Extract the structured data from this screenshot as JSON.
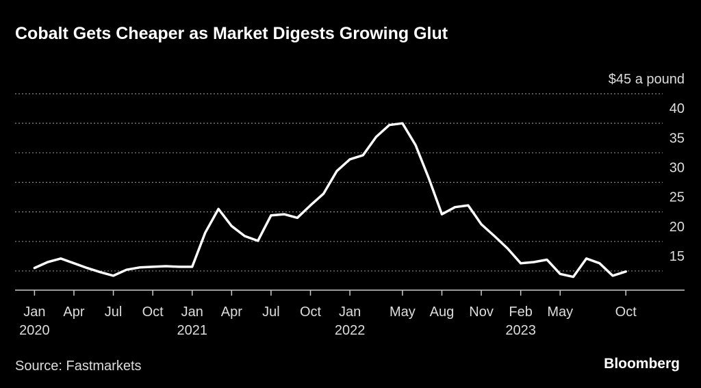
{
  "chart_data": {
    "type": "line",
    "title": "Cobalt Gets Cheaper as Market Digests Growing Glut",
    "source": "Source: Fastmarkets",
    "brand": "Bloomberg",
    "color": "#ffffff",
    "grid": true,
    "x": [
      "2020-01",
      "2020-02",
      "2020-03",
      "2020-04",
      "2020-05",
      "2020-06",
      "2020-07",
      "2020-08",
      "2020-09",
      "2020-10",
      "2020-11",
      "2020-12",
      "2021-01",
      "2021-02",
      "2021-03",
      "2021-04",
      "2021-05",
      "2021-06",
      "2021-07",
      "2021-08",
      "2021-09",
      "2021-10",
      "2021-11",
      "2021-12",
      "2022-01",
      "2022-02",
      "2022-03",
      "2022-04",
      "2022-05",
      "2022-06",
      "2022-07",
      "2022-08",
      "2022-09",
      "2022-10",
      "2022-11",
      "2022-12",
      "2023-01",
      "2023-02",
      "2023-03",
      "2023-04",
      "2023-05",
      "2023-06",
      "2023-07",
      "2023-08",
      "2023-09",
      "2023-10"
    ],
    "values": [
      15.5,
      16.5,
      17.1,
      16.3,
      15.5,
      14.8,
      14.2,
      15.2,
      15.6,
      15.7,
      15.8,
      15.7,
      15.7,
      21.5,
      25.5,
      22.6,
      20.9,
      20.1,
      24.4,
      24.6,
      24.0,
      26.1,
      28.1,
      31.9,
      33.9,
      34.6,
      37.7,
      39.7,
      40.0,
      36.3,
      30.7,
      24.6,
      25.8,
      26.1,
      22.9,
      20.9,
      18.8,
      16.3,
      16.5,
      16.9,
      14.5,
      14.0,
      17.1,
      16.3,
      14.2,
      14.9
    ],
    "xlim": [
      "2019-11",
      "2024-02"
    ],
    "xticks": [
      {
        "value": "2020-01",
        "label": "Jan",
        "year": "2020"
      },
      {
        "value": "2020-04",
        "label": "Apr"
      },
      {
        "value": "2020-07",
        "label": "Jul"
      },
      {
        "value": "2020-10",
        "label": "Oct"
      },
      {
        "value": "2021-01",
        "label": "Jan",
        "year": "2021"
      },
      {
        "value": "2021-04",
        "label": "Apr"
      },
      {
        "value": "2021-07",
        "label": "Jul"
      },
      {
        "value": "2021-10",
        "label": "Oct"
      },
      {
        "value": "2022-01",
        "label": "Jan",
        "year": "2022"
      },
      {
        "value": "2022-05",
        "label": "May"
      },
      {
        "value": "2022-08",
        "label": "Aug"
      },
      {
        "value": "2022-11",
        "label": "Nov"
      },
      {
        "value": "2023-02",
        "label": "Feb",
        "year": "2023"
      },
      {
        "value": "2023-05",
        "label": "May"
      },
      {
        "value": "2023-10",
        "label": "Oct"
      }
    ],
    "ylim": [
      11.75,
      45
    ],
    "yticks": [
      15,
      20,
      25,
      30,
      35,
      40,
      {
        "value": 45,
        "label": "$45 a pound"
      }
    ]
  }
}
